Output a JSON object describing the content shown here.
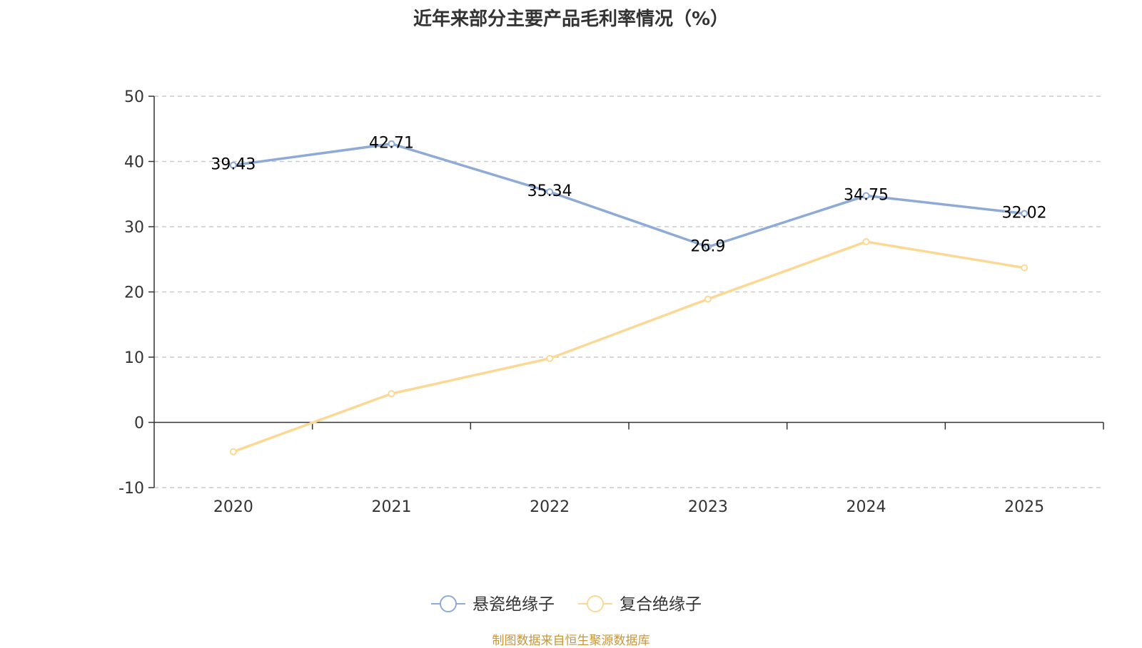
{
  "chart_data": {
    "type": "line",
    "title": "近年来部分主要产品毛利率情况（%）",
    "categories": [
      "2020",
      "2021",
      "2022",
      "2023",
      "2024",
      "2025"
    ],
    "ylim": [
      -10,
      50
    ],
    "yticks": [
      -10,
      0,
      10,
      20,
      30,
      40,
      50
    ],
    "grid": true,
    "legend_position": "bottom-center",
    "series": [
      {
        "name": "悬瓷绝缘子",
        "color": "#8eaad6",
        "values": [
          39.43,
          42.71,
          35.34,
          26.9,
          34.75,
          32.02
        ],
        "labels": [
          "39.43",
          "42.71",
          "35.34",
          "26.9",
          "34.75",
          "32.02"
        ]
      },
      {
        "name": "复合绝缘子",
        "color": "#fbd995",
        "values": [
          -4.5,
          4.4,
          9.8,
          18.9,
          27.7,
          23.7
        ],
        "labels": []
      }
    ],
    "source": "制图数据来自恒生聚源数据库"
  }
}
